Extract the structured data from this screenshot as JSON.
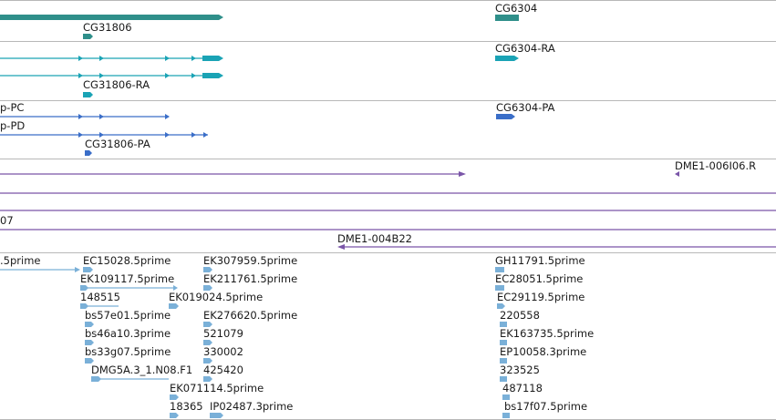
{
  "colors": {
    "gene": "#2f8f8a",
    "transcript_ra": "#1aa3b5",
    "transcript_pa": "#3a6ec8",
    "clone": "#7a55a8",
    "est": "#7ab0d8",
    "divider": "#b8b8b8"
  },
  "tracks": {
    "genes": {
      "labels": [
        "CG31806",
        "CG6304"
      ]
    },
    "transcripts_ra": {
      "labels": [
        "CG31806-RA",
        "CG6304-RA"
      ]
    },
    "transcripts_pa": {
      "labels": [
        "p-PC",
        "p-PD",
        "CG31806-PA",
        "CG6304-PA"
      ]
    },
    "clones": {
      "labels": [
        "DME1-006I06.R",
        "07",
        "DME1-004B22"
      ]
    },
    "ests": {
      "labels": [
        ".5prime",
        "EC15028.5prime",
        "EK307959.5prime",
        "GH11791.5prime",
        "EK109117.5prime",
        "EK211761.5prime",
        "EC28051.5prime",
        "148515",
        "EK019024.5prime",
        "EC29119.5prime",
        "bs57e01.5prime",
        "EK276620.5prime",
        "220558",
        "bs46a10.3prime",
        "521079",
        "EK163735.5prime",
        "bs33g07.5prime",
        "330002",
        "EP10058.3prime",
        "DMG5A.3_1.N08.F1",
        "425420",
        "323525",
        "EK071114.5prime",
        "487118",
        "18365",
        "IP02487.3prime",
        "bs17f07.5prime"
      ]
    }
  }
}
